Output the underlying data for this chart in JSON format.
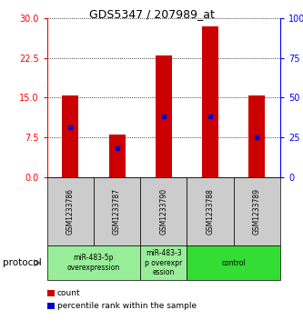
{
  "title": "GDS5347 / 207989_at",
  "samples": [
    "GSM1233786",
    "GSM1233787",
    "GSM1233790",
    "GSM1233788",
    "GSM1233789"
  ],
  "bar_heights": [
    15.5,
    8.0,
    23.0,
    28.5,
    15.5
  ],
  "percentile_values": [
    9.5,
    5.5,
    11.5,
    11.5,
    7.5
  ],
  "left_ylim": [
    0,
    30
  ],
  "right_ylim": [
    0,
    100
  ],
  "left_yticks": [
    0,
    7.5,
    15,
    22.5,
    30
  ],
  "right_yticks": [
    0,
    25,
    50,
    75,
    100
  ],
  "right_yticklabels": [
    "0",
    "25",
    "50",
    "75",
    "100%"
  ],
  "bar_color": "#cc0000",
  "dot_color": "#0000cc",
  "bg_color": "#ffffff",
  "groups": [
    {
      "label": "miR-483-5p\noverexpression",
      "sample_indices": [
        0,
        1
      ],
      "color": "#99ee99"
    },
    {
      "label": "miR-483-3\np overexpr\nession",
      "sample_indices": [
        2
      ],
      "color": "#99ee99"
    },
    {
      "label": "control",
      "sample_indices": [
        3,
        4
      ],
      "color": "#33dd33"
    }
  ],
  "protocol_label": "protocol",
  "legend_count_label": "count",
  "legend_percentile_label": "percentile rank within the sample"
}
